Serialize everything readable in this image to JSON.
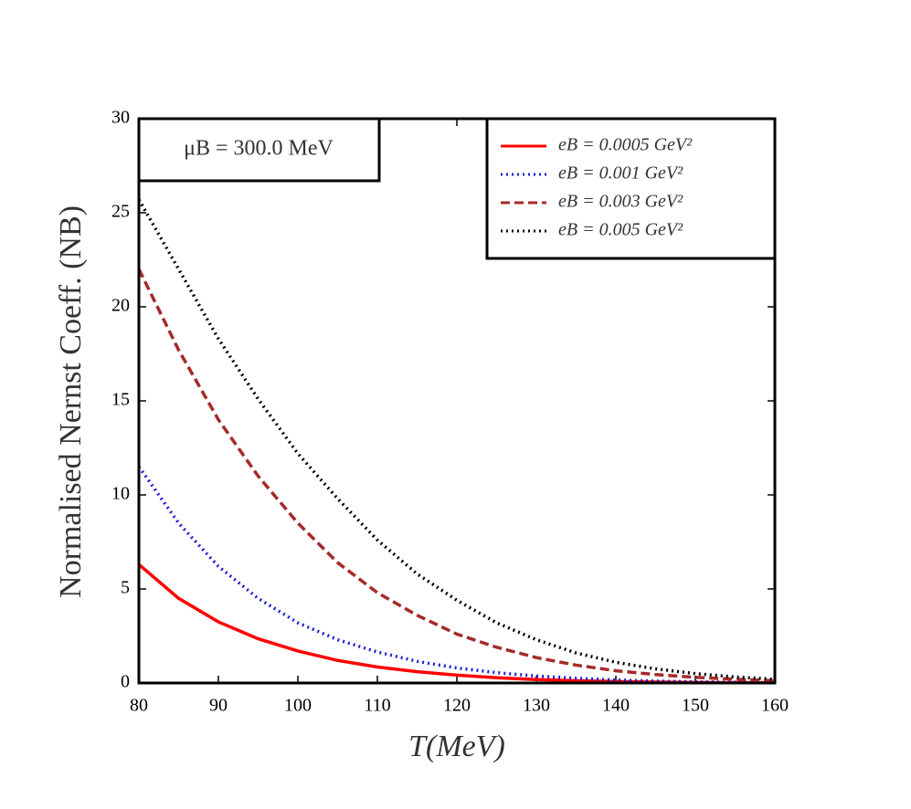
{
  "chart_data": {
    "type": "line",
    "xlabel": "T(MeV)",
    "ylabel": "Normalised Nernst Coeff. (NB)",
    "annotation": "μB = 300.0 MeV",
    "x": [
      80,
      85,
      90,
      95,
      100,
      105,
      110,
      115,
      120,
      125,
      130,
      135,
      140,
      145,
      150,
      155,
      160
    ],
    "series": [
      {
        "name": "eB = 0.0005 GeV²",
        "color": "#ff0000",
        "dash": "solid",
        "values": [
          6.3,
          4.5,
          3.25,
          2.35,
          1.7,
          1.2,
          0.85,
          0.6,
          0.42,
          0.28,
          0.18,
          0.12,
          0.08,
          0.05,
          0.03,
          0.02,
          0.01
        ]
      },
      {
        "name": "eB = 0.001 GeV²",
        "color": "#1f1fd0",
        "dash": "dotted",
        "values": [
          11.5,
          8.5,
          6.2,
          4.5,
          3.2,
          2.3,
          1.65,
          1.15,
          0.8,
          0.55,
          0.37,
          0.25,
          0.16,
          0.1,
          0.06,
          0.04,
          0.02
        ]
      },
      {
        "name": "eB = 0.003 GeV²",
        "color": "#a52a2a",
        "dash": "dashed",
        "values": [
          22,
          17.7,
          14,
          11,
          8.5,
          6.4,
          4.8,
          3.6,
          2.6,
          1.9,
          1.35,
          0.95,
          0.65,
          0.45,
          0.3,
          0.2,
          0.12
        ]
      },
      {
        "name": "eB = 0.005 GeV²",
        "color": "#000000",
        "dash": "dotted",
        "values": [
          25.7,
          22,
          18.3,
          15.1,
          12.2,
          9.8,
          7.6,
          5.8,
          4.4,
          3.2,
          2.3,
          1.6,
          1.1,
          0.75,
          0.5,
          0.32,
          0.2
        ]
      }
    ],
    "xlim": [
      80,
      160
    ],
    "xticks": [
      80,
      90,
      100,
      110,
      120,
      130,
      140,
      150,
      160
    ],
    "ylim": [
      0,
      30
    ],
    "yticks": [
      0,
      5,
      10,
      15,
      20,
      25,
      30
    ],
    "legend": "upper right",
    "grid": false
  }
}
